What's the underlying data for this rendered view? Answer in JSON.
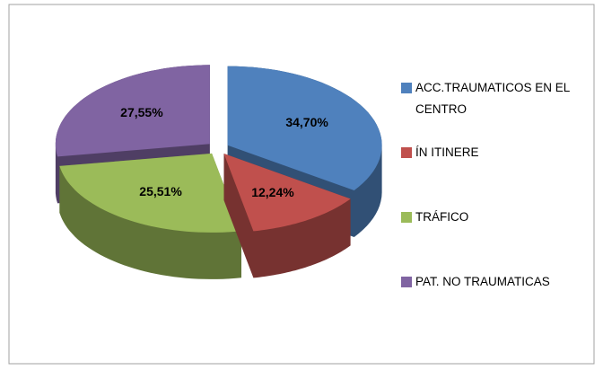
{
  "chart_data": {
    "type": "pie3d",
    "categories": [
      "ACC.TRAUMATICOS EN EL CENTRO",
      "ÍN ITINERE",
      "TRÁFICO",
      "PAT. NO TRAUMATICAS"
    ],
    "values": [
      34.7,
      12.24,
      25.51,
      27.55
    ],
    "value_labels": [
      "34,70%",
      "12,24%",
      "25,51%",
      "27,55%"
    ],
    "colors": [
      "#4f81bd",
      "#c0504d",
      "#9bbb59",
      "#8064a2"
    ],
    "legend": "right"
  }
}
